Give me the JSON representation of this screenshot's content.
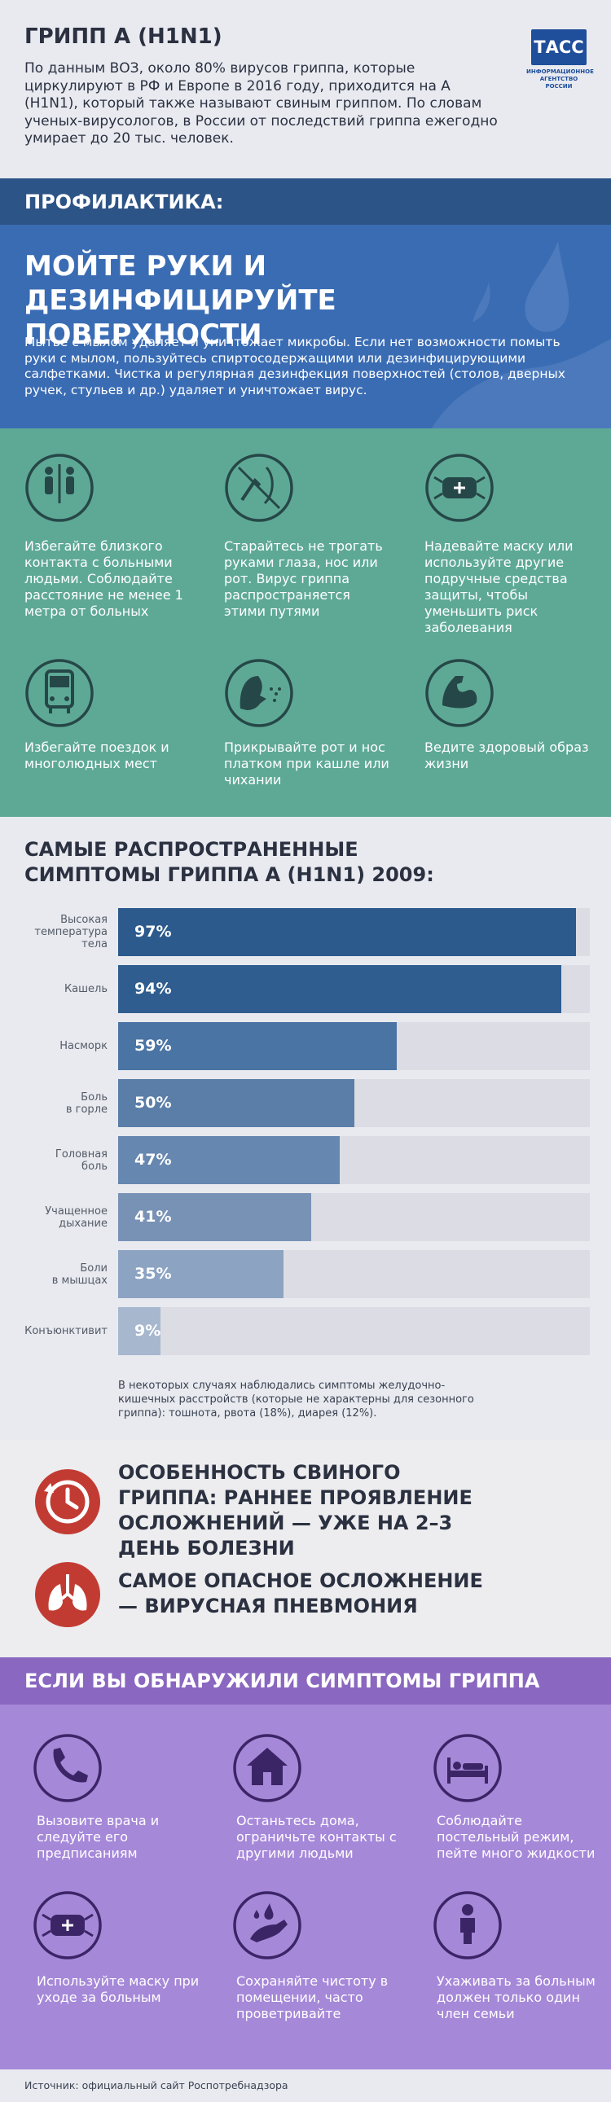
{
  "header": {
    "title": "ГРИПП А (H1N1)",
    "text": "По данным ВОЗ, около 80% вирусов гриппа, которые циркулируют в РФ и Европе в 2016 году, приходится на А (H1N1), который также называют свиным гриппом. По словам ученых-вирусологов, в России от последствий гриппа ежегодно умирает до 20 тыс. человек.",
    "logo": {
      "name": "ТАСС",
      "tagline": "ИНФОРМАЦИОННОЕ АГЕНТСТВО РОССИИ"
    }
  },
  "prevention": {
    "label": "ПРОФИЛАКТИКА:",
    "heading": "МОЙТЕ РУКИ И ДЕЗИНФИЦИРУЙТЕ ПОВЕРХНОСТИ",
    "text": "Мытье с мылом удаляет и уничтожает микробы. Если нет возможности помыть руки с мылом, пользуйтесь спиртосодержащими или дезинфицирующими салфетками. Чистка и регулярная дезинфекция поверхностей (столов, дверных ручек, стульев и др.) удаляет и уничтожает вирус."
  },
  "tips": [
    "Избегайте близкого контакта с больными людьми. Соблюдайте расстояние не менее 1 метра от больных",
    "Старайтесь не трогать руками глаза, нос или рот. Вирус гриппа распространяется этими путями",
    "Надевайте маску или используйте другие подручные средства защиты, чтобы уменьшить риск заболевания",
    "Избегайте поездок и многолюдных мест",
    "Прикрывайте рот и нос платком при кашле или чихании",
    "Ведите здоровый образ жизни"
  ],
  "chart_data": {
    "type": "bar",
    "horizontal": true,
    "title": "САМЫЕ РАСПРОСТРАНЕННЫЕ СИМПТОМЫ ГРИППА А (H1N1) 2009:",
    "categories": [
      "Высокая\nтемпература\nтела",
      "Кашель",
      "Насморк",
      "Боль\nв горле",
      "Головная\nболь",
      "Учащенное\nдыхание",
      "Боли\nв мышцах",
      "Конъюнктивит"
    ],
    "values": [
      97,
      94,
      59,
      50,
      47,
      41,
      35,
      9
    ],
    "value_labels": [
      "97%",
      "94%",
      "59%",
      "50%",
      "47%",
      "41%",
      "35%",
      "9%"
    ],
    "colors": [
      "#2c5a8c",
      "#2f5d8f",
      "#4a74a4",
      "#5a7ea8",
      "#6687b0",
      "#7892b6",
      "#8ca3c2",
      "#a7b8ce"
    ],
    "xlim": [
      0,
      100
    ],
    "note": "В некоторых случаях наблюдались симптомы желудочно-кишечных расстройств (которые не характерны для сезонного гриппа): тошнота, рвота (18%), диарея (12%)."
  },
  "complications": [
    "ОСОБЕННОСТЬ СВИНОГО ГРИППА: РАННЕЕ ПРОЯВЛЕНИЕ ОСЛОЖНЕНИЙ — УЖЕ НА 2–3 ДЕНЬ БОЛЕЗНИ",
    "САМОЕ ОПАСНОЕ ОСЛОЖНЕНИЕ — ВИРУСНАЯ ПНЕВМОНИЯ"
  ],
  "actions": {
    "title": "ЕСЛИ ВЫ ОБНАРУЖИЛИ СИМПТОМЫ ГРИППА",
    "items": [
      "Вызовите врача и следуйте его предписаниям",
      "Останьтесь дома, ограничьте контакты с другими людьми",
      "Соблюдайте постельный режим, пейте много жидкости",
      "Используйте маску при уходе за больным",
      "Сохраняйте чистоту в помещении, часто проветривайте",
      "Ухаживать за больным должен только один член семьи"
    ]
  },
  "source": "Источник: официальный сайт Роспотребнадзора"
}
